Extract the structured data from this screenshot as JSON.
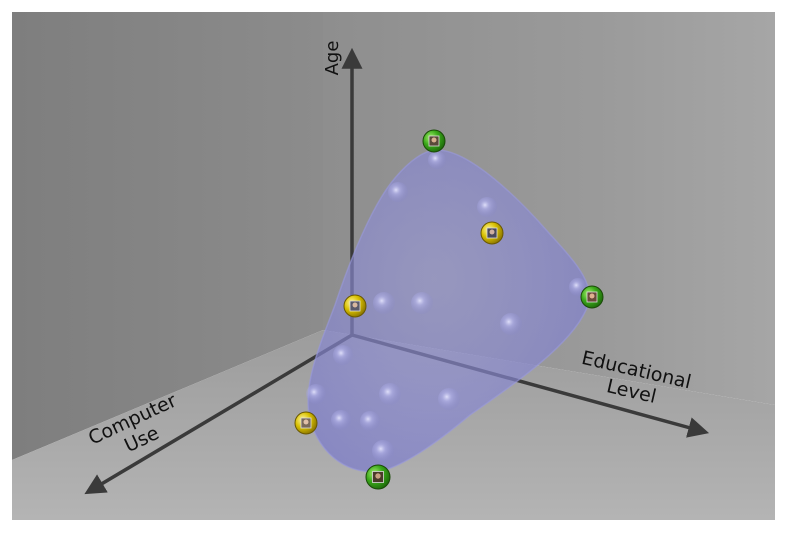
{
  "axes": {
    "age": "Age",
    "computer_use": {
      "line1": "Computer",
      "line2": "Use"
    },
    "educational_level": {
      "line1": "Educational",
      "line2": "Level"
    }
  },
  "colors": {
    "surface_fill": "#8a8ad0",
    "marker_green": "#3aa81a",
    "marker_yellow": "#d8c000",
    "axis_color": "#3a3a3a"
  },
  "markers": [
    {
      "id": "green-top",
      "kind": "green",
      "icon": "person-photo-icon"
    },
    {
      "id": "yellow-mid-right",
      "kind": "yellow",
      "icon": "person-photo-icon"
    },
    {
      "id": "green-right",
      "kind": "green",
      "icon": "person-photo-icon"
    },
    {
      "id": "yellow-center",
      "kind": "yellow",
      "icon": "person-photo-icon"
    },
    {
      "id": "yellow-lower-left",
      "kind": "yellow",
      "icon": "person-photo-icon"
    },
    {
      "id": "green-bottom",
      "kind": "green",
      "icon": "person-photo-icon"
    }
  ]
}
